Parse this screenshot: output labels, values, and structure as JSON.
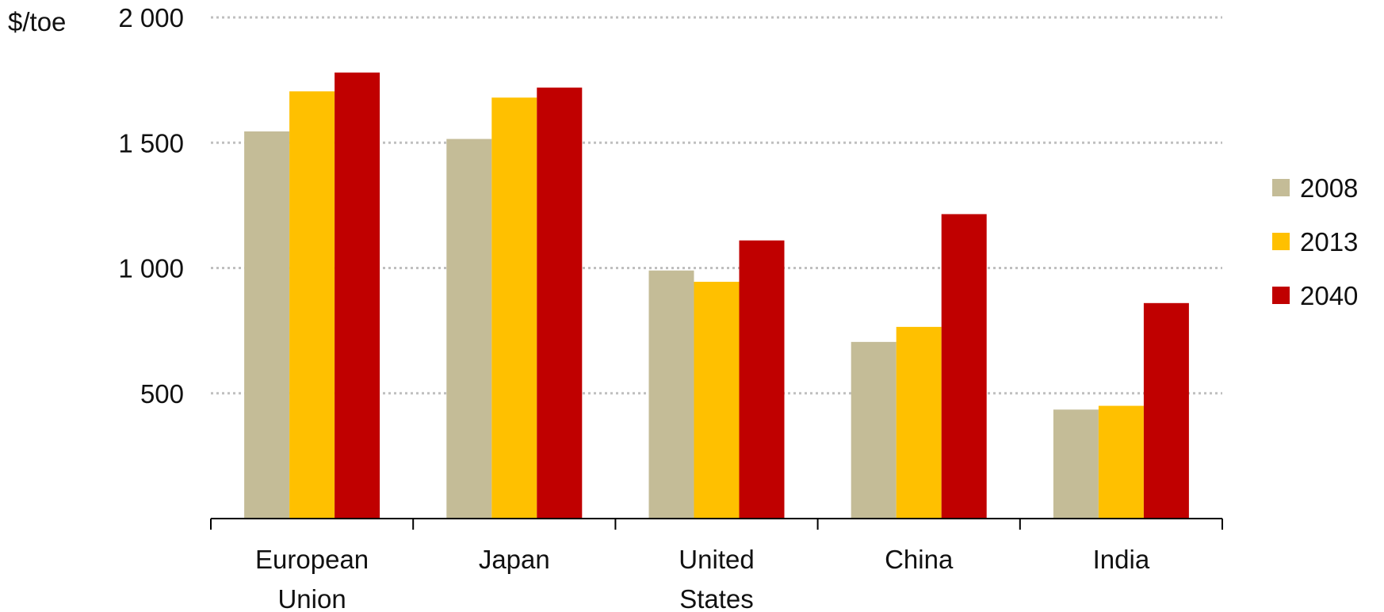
{
  "chart_data": {
    "type": "bar",
    "unit_label": "$/toe",
    "categories": [
      [
        "European",
        "Union"
      ],
      [
        "Japan"
      ],
      [
        "United",
        "States"
      ],
      [
        "China"
      ],
      [
        "India"
      ]
    ],
    "series": [
      {
        "name": "2008",
        "color": "#C4BC97",
        "values": [
          1545,
          1515,
          990,
          705,
          435
        ]
      },
      {
        "name": "2013",
        "color": "#FFC000",
        "values": [
          1705,
          1680,
          945,
          765,
          450
        ]
      },
      {
        "name": "2040",
        "color": "#C00000",
        "values": [
          1780,
          1720,
          1110,
          1215,
          860
        ]
      }
    ],
    "yaxis": {
      "range": [
        0,
        2000
      ],
      "ticks": [
        500,
        1000,
        1500,
        2000
      ],
      "tick_labels": [
        "500",
        "1 000",
        "1 500",
        "2 000"
      ],
      "gridlines": "dotted"
    },
    "legend": {
      "position": "right"
    },
    "colors": {
      "grid": "#BFBFBF",
      "axis": "#000000"
    }
  }
}
